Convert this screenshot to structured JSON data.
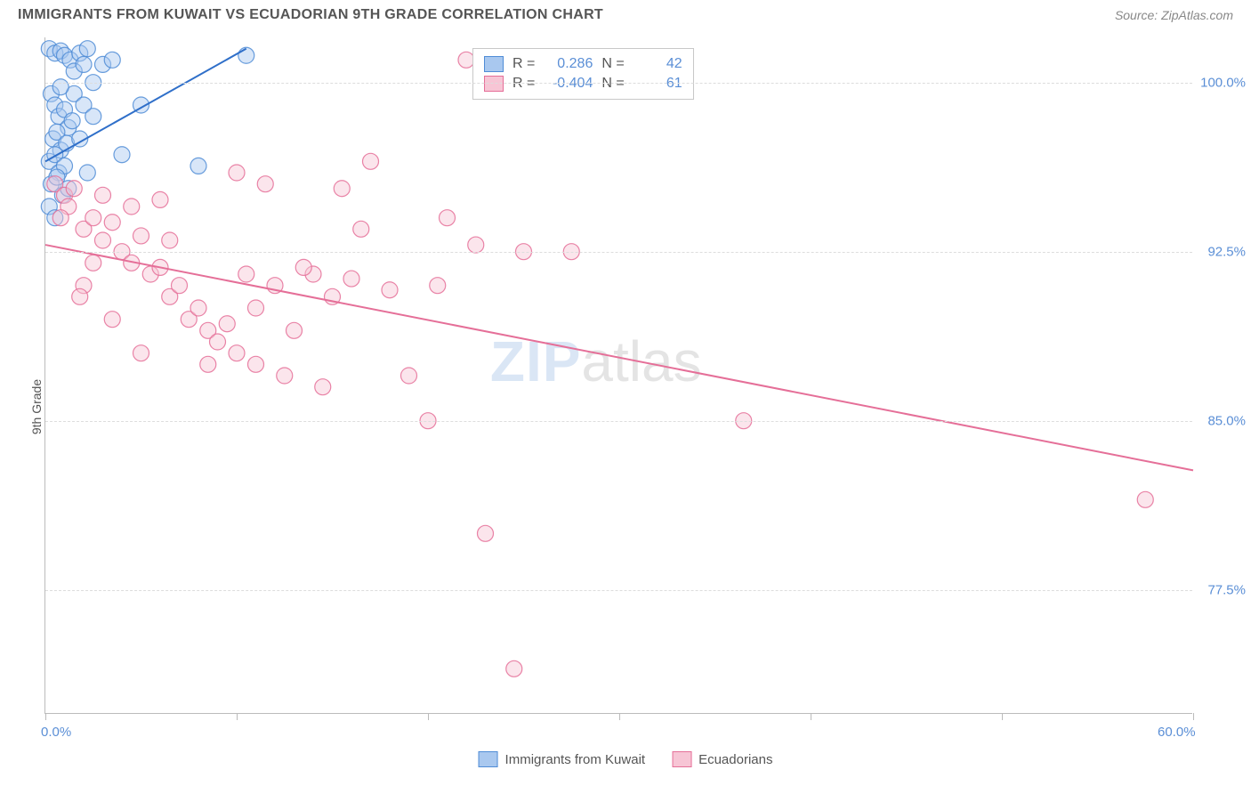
{
  "title": "IMMIGRANTS FROM KUWAIT VS ECUADORIAN 9TH GRADE CORRELATION CHART",
  "source_label": "Source: ZipAtlas.com",
  "ylabel": "9th Grade",
  "watermark": {
    "zip": "ZIP",
    "atlas": "atlas"
  },
  "chart": {
    "type": "scatter",
    "xlim": [
      0,
      60
    ],
    "ylim": [
      72,
      102
    ],
    "x_tick_positions": [
      0,
      10,
      20,
      30,
      40,
      50,
      60
    ],
    "x_tick_labels": {
      "0": "0.0%",
      "60": "60.0%"
    },
    "y_ticks": [
      77.5,
      85.0,
      92.5,
      100.0
    ],
    "y_tick_labels": [
      "77.5%",
      "85.0%",
      "92.5%",
      "100.0%"
    ],
    "grid_color": "#dddddd",
    "axis_color": "#bbbbbb",
    "background_color": "#ffffff",
    "label_color": "#5b8fd6",
    "label_fontsize": 15,
    "marker_radius": 9,
    "marker_opacity": 0.45,
    "marker_stroke_opacity": 0.85,
    "line_width": 2
  },
  "series": [
    {
      "name": "Immigrants from Kuwait",
      "color_fill": "#a9c8ef",
      "color_stroke": "#4f8cd6",
      "line_color": "#2f6fc9",
      "R": "0.286",
      "N": "42",
      "trend": {
        "x1": 0,
        "y1": 96.5,
        "x2": 10.5,
        "y2": 101.5
      },
      "points": [
        [
          0.2,
          101.5
        ],
        [
          0.5,
          101.3
        ],
        [
          0.8,
          101.4
        ],
        [
          1.0,
          101.2
        ],
        [
          1.3,
          101.0
        ],
        [
          1.5,
          100.5
        ],
        [
          1.8,
          101.3
        ],
        [
          2.0,
          100.8
        ],
        [
          2.2,
          101.5
        ],
        [
          2.5,
          100.0
        ],
        [
          0.3,
          99.5
        ],
        [
          0.5,
          99.0
        ],
        [
          0.7,
          98.5
        ],
        [
          1.0,
          98.8
        ],
        [
          1.2,
          98.0
        ],
        [
          0.4,
          97.5
        ],
        [
          0.6,
          97.8
        ],
        [
          0.8,
          97.0
        ],
        [
          1.1,
          97.3
        ],
        [
          0.2,
          96.5
        ],
        [
          0.5,
          96.8
        ],
        [
          0.7,
          96.0
        ],
        [
          1.0,
          96.3
        ],
        [
          0.3,
          95.5
        ],
        [
          0.6,
          95.8
        ],
        [
          0.9,
          95.0
        ],
        [
          1.2,
          95.3
        ],
        [
          0.2,
          94.5
        ],
        [
          0.5,
          94.0
        ],
        [
          1.5,
          99.5
        ],
        [
          2.0,
          99.0
        ],
        [
          2.5,
          98.5
        ],
        [
          3.0,
          100.8
        ],
        [
          3.5,
          101.0
        ],
        [
          4.0,
          96.8
        ],
        [
          5.0,
          99.0
        ],
        [
          8.0,
          96.3
        ],
        [
          10.5,
          101.2
        ],
        [
          1.8,
          97.5
        ],
        [
          2.2,
          96.0
        ],
        [
          0.8,
          99.8
        ],
        [
          1.4,
          98.3
        ]
      ]
    },
    {
      "name": "Ecuadorians",
      "color_fill": "#f7c5d5",
      "color_stroke": "#e56f98",
      "line_color": "#e56f98",
      "R": "-0.404",
      "N": "61",
      "trend": {
        "x1": 0,
        "y1": 92.8,
        "x2": 60,
        "y2": 82.8
      },
      "points": [
        [
          0.5,
          95.5
        ],
        [
          1.0,
          95.0
        ],
        [
          1.2,
          94.5
        ],
        [
          1.5,
          95.3
        ],
        [
          0.8,
          94.0
        ],
        [
          2.0,
          93.5
        ],
        [
          2.5,
          94.0
        ],
        [
          3.0,
          93.0
        ],
        [
          3.5,
          93.8
        ],
        [
          4.0,
          92.5
        ],
        [
          4.5,
          92.0
        ],
        [
          5.0,
          93.2
        ],
        [
          5.5,
          91.5
        ],
        [
          6.0,
          91.8
        ],
        [
          6.5,
          90.5
        ],
        [
          7.0,
          91.0
        ],
        [
          7.5,
          89.5
        ],
        [
          8.0,
          90.0
        ],
        [
          8.5,
          89.0
        ],
        [
          9.0,
          88.5
        ],
        [
          9.5,
          89.3
        ],
        [
          10.0,
          96.0
        ],
        [
          10.5,
          91.5
        ],
        [
          11.0,
          90.0
        ],
        [
          11.5,
          95.5
        ],
        [
          12.0,
          91.0
        ],
        [
          13.0,
          89.0
        ],
        [
          14.0,
          91.5
        ],
        [
          14.5,
          86.5
        ],
        [
          15.0,
          90.5
        ],
        [
          15.5,
          95.3
        ],
        [
          16.0,
          91.3
        ],
        [
          17.0,
          96.5
        ],
        [
          18.0,
          90.8
        ],
        [
          19.0,
          87.0
        ],
        [
          20.0,
          85.0
        ],
        [
          20.5,
          91.0
        ],
        [
          21.0,
          94.0
        ],
        [
          22.0,
          101.0
        ],
        [
          22.5,
          92.8
        ],
        [
          23.0,
          80.0
        ],
        [
          24.5,
          74.0
        ],
        [
          25.0,
          92.5
        ],
        [
          27.5,
          92.5
        ],
        [
          36.5,
          85.0
        ],
        [
          57.5,
          81.5
        ],
        [
          3.0,
          95.0
        ],
        [
          5.0,
          88.0
        ],
        [
          6.0,
          94.8
        ],
        [
          2.0,
          91.0
        ],
        [
          3.5,
          89.5
        ],
        [
          4.5,
          94.5
        ],
        [
          8.5,
          87.5
        ],
        [
          10.0,
          88.0
        ],
        [
          12.5,
          87.0
        ],
        [
          2.5,
          92.0
        ],
        [
          1.8,
          90.5
        ],
        [
          6.5,
          93.0
        ],
        [
          13.5,
          91.8
        ],
        [
          16.5,
          93.5
        ],
        [
          11.0,
          87.5
        ]
      ]
    }
  ],
  "stats_labels": {
    "r": "R =",
    "n": "N ="
  },
  "legend_bottom": [
    {
      "label": "Immigrants from Kuwait",
      "fill": "#a9c8ef",
      "stroke": "#4f8cd6"
    },
    {
      "label": "Ecuadorians",
      "fill": "#f7c5d5",
      "stroke": "#e56f98"
    }
  ]
}
